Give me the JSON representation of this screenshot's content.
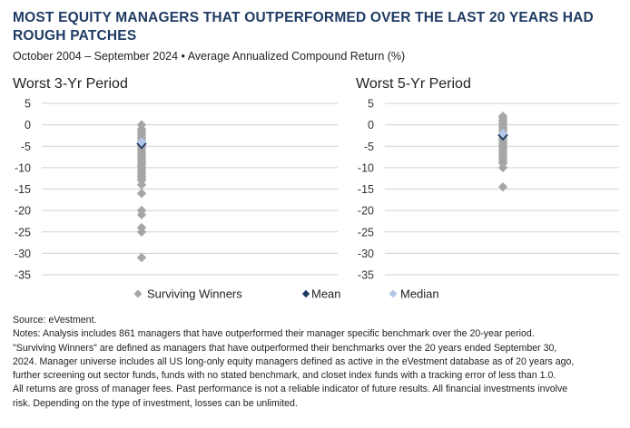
{
  "title": "MOST EQUITY MANAGERS THAT OUTPERFORMED OVER THE LAST 20 YEARS HAD ROUGH PATCHES",
  "subtitle": "October 2004 – September 2024 • Average Annualized Compound Return (%)",
  "chart_data": [
    {
      "type": "scatter",
      "title": "Worst 3-Yr Period",
      "ylim": [
        -35,
        5
      ],
      "yticks": [
        5,
        0,
        -5,
        -10,
        -15,
        -20,
        -25,
        -30,
        -35
      ],
      "grid": true,
      "series": [
        {
          "name": "Surviving Winners",
          "values": [
            0,
            -1,
            -1.5,
            -2,
            -2.5,
            -3,
            -3.5,
            -4,
            -4.5,
            -5,
            -5.5,
            -6,
            -6.5,
            -7,
            -7.5,
            -8,
            -8.5,
            -9,
            -9.5,
            -10,
            -10.5,
            -11,
            -11.5,
            -12,
            -12.5,
            -13,
            -14,
            -16,
            -20,
            -21,
            -24,
            -25,
            -31
          ]
        },
        {
          "name": "Mean",
          "values": [
            -4.8
          ]
        },
        {
          "name": "Median",
          "values": [
            -4
          ]
        }
      ]
    },
    {
      "type": "scatter",
      "title": "Worst 5-Yr Period",
      "ylim": [
        -35,
        5
      ],
      "yticks": [
        5,
        0,
        -5,
        -10,
        -15,
        -20,
        -25,
        -30,
        -35
      ],
      "grid": true,
      "series": [
        {
          "name": "Surviving Winners",
          "values": [
            2,
            1.5,
            1,
            0.5,
            0,
            -0.5,
            -1,
            -1.5,
            -2,
            -2.5,
            -3,
            -3.5,
            -4,
            -4.5,
            -5,
            -5.5,
            -6,
            -6.5,
            -7,
            -7.5,
            -8,
            -8.5,
            -9,
            -10,
            -14.5
          ]
        },
        {
          "name": "Mean",
          "values": [
            -2.8
          ]
        },
        {
          "name": "Median",
          "values": [
            -2
          ]
        }
      ]
    }
  ],
  "legend": {
    "placement": "bottom-center",
    "items": [
      {
        "label": "Surviving Winners",
        "color": "#a6a6a6"
      },
      {
        "label": "Mean",
        "color": "#1f3b63"
      },
      {
        "label": "Median",
        "color": "#b4c6e7"
      }
    ]
  },
  "colors": {
    "title": "#1f3b63",
    "winners": "#a6a6a6",
    "mean": "#1f3b63",
    "median": "#b4c6e7",
    "grid": "#d0d0d0"
  },
  "source": "Source: eVestment.",
  "notes": [
    "Notes: Analysis includes 861 managers that have outperformed their manager specific benchmark over the 20-year period.",
    "\"Surviving Winners\" are defined as managers that have outperformed their benchmarks over the 20 years ended September 30,",
    "2024. Manager universe includes all US long-only equity managers defined as active in the eVestment database as of 20 years ago,",
    "further screening out sector funds, funds with no stated benchmark, and closet index funds with a tracking error of less than 1.0.",
    "All returns are gross of manager fees. Past performance is not a reliable indicator of future results. All financial investments involve",
    "risk. Depending on the type of investment, losses can be unlimited."
  ]
}
